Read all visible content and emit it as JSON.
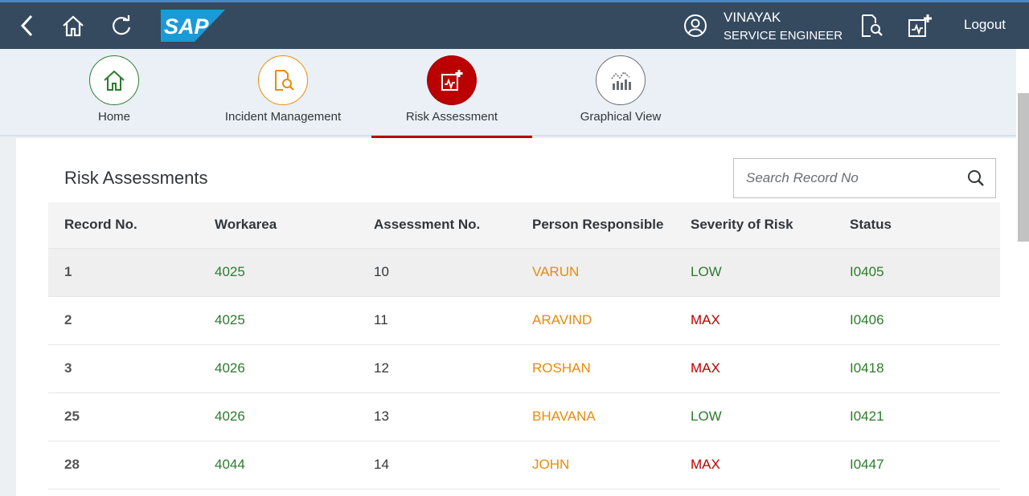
{
  "shell": {
    "logo_text": "SAP",
    "user_name": "VINAYAK",
    "user_role": "SERVICE ENGINEER",
    "logout_label": "Logout"
  },
  "nav": [
    {
      "label": "Home",
      "icon": "home-icon",
      "color": "#2b7c2b"
    },
    {
      "label": "Incident Management",
      "icon": "document-search-icon",
      "color": "#e78c07"
    },
    {
      "label": "Risk Assessment",
      "icon": "medical-chart-add-icon",
      "color": "#bb0000",
      "active": true
    },
    {
      "label": "Graphical View",
      "icon": "chart-icon",
      "color": "#6a6d70"
    }
  ],
  "page": {
    "title": "Risk Assessments",
    "search_placeholder": "Search Record No"
  },
  "table": {
    "headers": [
      "Record No.",
      "Workarea",
      "Assessment No.",
      "Person Responsible",
      "Severity of Risk",
      "Status"
    ],
    "rows": [
      {
        "record": "1",
        "workarea": "4025",
        "assessment": "10",
        "person": "VARUN",
        "severity": "LOW",
        "status": "I0405"
      },
      {
        "record": "2",
        "workarea": "4025",
        "assessment": "11",
        "person": "ARAVIND",
        "severity": "MAX",
        "status": "I0406"
      },
      {
        "record": "3",
        "workarea": "4026",
        "assessment": "12",
        "person": "ROSHAN",
        "severity": "MAX",
        "status": "I0418"
      },
      {
        "record": "25",
        "workarea": "4026",
        "assessment": "13",
        "person": "BHAVANA",
        "severity": "LOW",
        "status": "I0421"
      },
      {
        "record": "28",
        "workarea": "4044",
        "assessment": "14",
        "person": "JOHN",
        "severity": "MAX",
        "status": "I0447"
      }
    ]
  },
  "colors": {
    "shell_bg": "#354a5f",
    "low": "#2b7c2b",
    "max": "#bb0000",
    "person": "#e78c07",
    "workarea": "#2b7c2b",
    "status": "#2b7c2b"
  }
}
